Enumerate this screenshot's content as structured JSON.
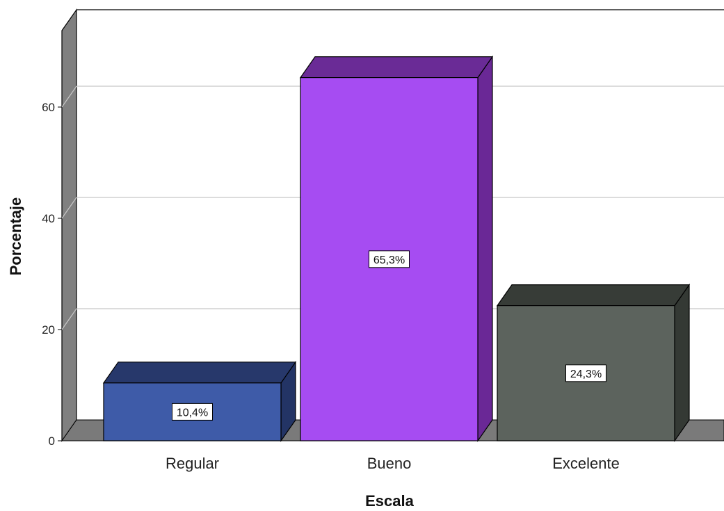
{
  "chart_data": {
    "type": "bar",
    "title": "",
    "xlabel": "Escala",
    "ylabel": "Porcentaje",
    "categories": [
      "Regular",
      "Bueno",
      "Excelente"
    ],
    "values": [
      10.4,
      65.3,
      24.3
    ],
    "data_labels": [
      "10,4%",
      "65,3%",
      "24,3%"
    ],
    "yticks": [
      0,
      20,
      40,
      60
    ],
    "ytick_labels": [
      "0",
      "20",
      "40",
      "60"
    ],
    "ylim": [
      0,
      75
    ],
    "grid": true,
    "legend": "none",
    "style": "3d",
    "colors": {
      "bars": [
        {
          "front": "#3e5ba8",
          "top": "#27386b",
          "side": "#233465"
        },
        {
          "front": "#a64cf2",
          "top": "#6a2b96",
          "side": "#6a2896"
        },
        {
          "front": "#5c635d",
          "top": "#373c37",
          "side": "#343934"
        }
      ],
      "wall": "#808080",
      "floor": "#7a7a7a",
      "grid": "#c8c8c8"
    }
  }
}
